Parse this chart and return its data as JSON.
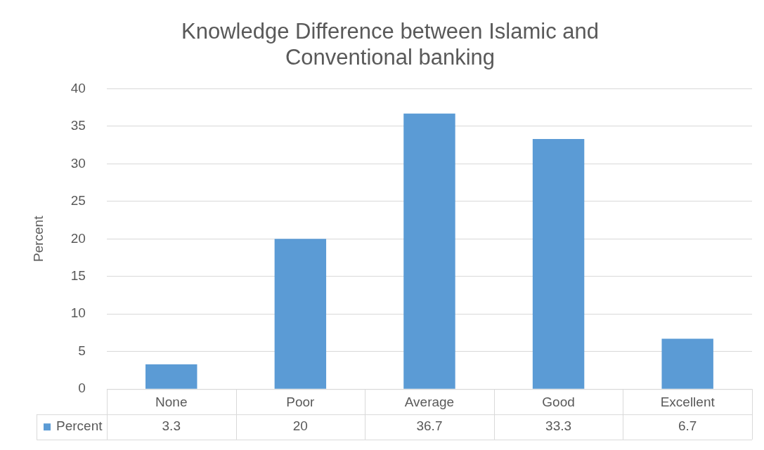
{
  "chart_data": {
    "type": "bar",
    "title": "Knowledge Difference between Islamic and Conventional banking",
    "ylabel": "Percent",
    "categories": [
      "None",
      "Poor",
      "Average",
      "Good",
      "Excellent"
    ],
    "series": [
      {
        "name": "Percent",
        "color": "#5b9bd5",
        "values": [
          3.3,
          20,
          36.7,
          33.3,
          6.7
        ]
      }
    ],
    "ylim": [
      0,
      40
    ],
    "yticks": [
      0,
      5,
      10,
      15,
      20,
      25,
      30,
      35,
      40
    ],
    "grid": "y",
    "legend": "bottom",
    "data_labels": true
  }
}
